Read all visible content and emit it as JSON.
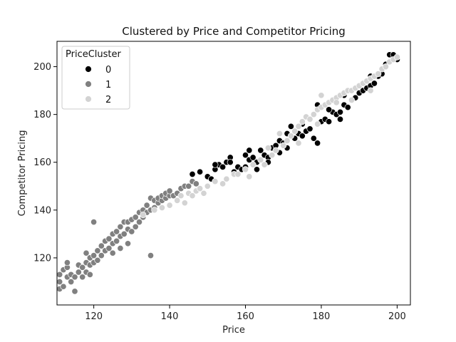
{
  "chart_data": {
    "type": "scatter",
    "title": "Clustered by Price and Competitor Pricing",
    "xlabel": "Price",
    "ylabel": "Competitor Pricing",
    "xlim": [
      110.3,
      203.5
    ],
    "ylim": [
      100.3,
      210.6
    ],
    "x_ticks": [
      120,
      140,
      160,
      180,
      200
    ],
    "y_ticks": [
      120,
      140,
      160,
      180,
      200
    ],
    "grid": false,
    "legend": {
      "title": "PriceCluster",
      "placement": "top-left",
      "entries": [
        {
          "label": "0",
          "color": "#000000"
        },
        {
          "label": "1",
          "color": "#808080"
        },
        {
          "label": "2",
          "color": "#d3d3d3"
        }
      ]
    },
    "series": [
      {
        "name": "0",
        "color": "#000000",
        "points": [
          [
            146,
            155
          ],
          [
            148,
            156
          ],
          [
            150,
            154
          ],
          [
            151,
            153
          ],
          [
            152,
            157
          ],
          [
            153,
            159
          ],
          [
            154,
            158
          ],
          [
            155,
            160
          ],
          [
            156,
            162
          ],
          [
            157,
            156
          ],
          [
            158,
            158
          ],
          [
            159,
            157
          ],
          [
            160,
            158
          ],
          [
            161,
            161
          ],
          [
            161,
            165
          ],
          [
            162,
            162
          ],
          [
            163,
            160
          ],
          [
            164,
            165
          ],
          [
            165,
            163
          ],
          [
            166,
            162
          ],
          [
            167,
            166
          ],
          [
            168,
            167
          ],
          [
            169,
            169
          ],
          [
            170,
            168
          ],
          [
            171,
            172
          ],
          [
            172,
            171
          ],
          [
            173,
            170
          ],
          [
            174,
            172
          ],
          [
            175,
            171
          ],
          [
            176,
            173
          ],
          [
            177,
            174
          ],
          [
            178,
            170
          ],
          [
            179,
            168
          ],
          [
            180,
            177
          ],
          [
            181,
            178
          ],
          [
            182,
            177
          ],
          [
            183,
            181
          ],
          [
            184,
            180
          ],
          [
            185,
            181
          ],
          [
            186,
            184
          ],
          [
            187,
            183
          ],
          [
            188,
            186
          ],
          [
            189,
            187
          ],
          [
            190,
            189
          ],
          [
            191,
            190
          ],
          [
            192,
            191
          ],
          [
            193,
            192
          ],
          [
            194,
            193
          ],
          [
            195,
            196
          ],
          [
            196,
            197
          ],
          [
            197,
            201
          ],
          [
            198,
            205
          ],
          [
            199,
            205
          ],
          [
            200,
            203
          ],
          [
            178,
            180
          ],
          [
            172,
            175
          ],
          [
            166,
            160
          ],
          [
            163,
            157
          ],
          [
            169,
            164
          ],
          [
            175,
            176
          ],
          [
            182,
            182
          ],
          [
            186,
            188
          ],
          [
            190,
            192
          ],
          [
            193,
            196
          ],
          [
            185,
            178
          ],
          [
            179,
            184
          ],
          [
            171,
            166
          ],
          [
            160,
            163
          ],
          [
            156,
            160
          ],
          [
            152,
            159
          ]
        ]
      },
      {
        "name": "1",
        "color": "#808080",
        "points": [
          [
            111,
            107
          ],
          [
            111,
            110
          ],
          [
            111,
            113
          ],
          [
            112,
            115
          ],
          [
            112,
            108
          ],
          [
            113,
            112
          ],
          [
            113,
            116
          ],
          [
            114,
            110
          ],
          [
            114,
            113
          ],
          [
            115,
            106
          ],
          [
            115,
            112
          ],
          [
            116,
            114
          ],
          [
            116,
            117
          ],
          [
            117,
            112
          ],
          [
            117,
            116
          ],
          [
            118,
            114
          ],
          [
            118,
            118
          ],
          [
            119,
            117
          ],
          [
            119,
            120
          ],
          [
            120,
            118
          ],
          [
            120,
            121
          ],
          [
            120,
            135
          ],
          [
            121,
            119
          ],
          [
            121,
            123
          ],
          [
            122,
            121
          ],
          [
            122,
            125
          ],
          [
            123,
            123
          ],
          [
            123,
            127
          ],
          [
            124,
            124
          ],
          [
            124,
            128
          ],
          [
            125,
            126
          ],
          [
            125,
            130
          ],
          [
            126,
            127
          ],
          [
            126,
            131
          ],
          [
            127,
            129
          ],
          [
            127,
            133
          ],
          [
            128,
            130
          ],
          [
            128,
            135
          ],
          [
            129,
            132
          ],
          [
            129,
            135
          ],
          [
            130,
            131
          ],
          [
            130,
            136
          ],
          [
            131,
            133
          ],
          [
            131,
            137
          ],
          [
            132,
            135
          ],
          [
            132,
            139
          ],
          [
            133,
            137
          ],
          [
            133,
            140
          ],
          [
            134,
            139
          ],
          [
            134,
            142
          ],
          [
            135,
            140
          ],
          [
            135,
            121
          ],
          [
            135,
            145
          ],
          [
            136,
            141
          ],
          [
            136,
            144
          ],
          [
            137,
            143
          ],
          [
            137,
            145
          ],
          [
            138,
            144
          ],
          [
            138,
            146
          ],
          [
            139,
            145
          ],
          [
            139,
            147
          ],
          [
            140,
            146
          ],
          [
            140,
            148
          ],
          [
            141,
            146
          ],
          [
            142,
            147
          ],
          [
            143,
            149
          ],
          [
            144,
            150
          ],
          [
            145,
            150
          ],
          [
            146,
            152
          ],
          [
            147,
            151
          ],
          [
            125,
            122
          ],
          [
            127,
            124
          ],
          [
            129,
            126
          ],
          [
            119,
            113
          ],
          [
            118,
            122
          ],
          [
            113,
            118
          ]
        ]
      },
      {
        "name": "2",
        "color": "#d3d3d3",
        "points": [
          [
            133,
            138
          ],
          [
            136,
            140
          ],
          [
            138,
            141
          ],
          [
            140,
            142
          ],
          [
            142,
            144
          ],
          [
            143,
            146
          ],
          [
            144,
            143
          ],
          [
            145,
            147
          ],
          [
            146,
            146
          ],
          [
            147,
            148
          ],
          [
            148,
            149
          ],
          [
            149,
            147
          ],
          [
            150,
            150
          ],
          [
            152,
            152
          ],
          [
            154,
            151
          ],
          [
            155,
            153
          ],
          [
            157,
            155
          ],
          [
            158,
            155
          ],
          [
            160,
            157
          ],
          [
            162,
            159
          ],
          [
            164,
            161
          ],
          [
            165,
            159
          ],
          [
            166,
            166
          ],
          [
            167,
            163
          ],
          [
            168,
            165
          ],
          [
            170,
            167
          ],
          [
            171,
            169
          ],
          [
            172,
            171
          ],
          [
            173,
            173
          ],
          [
            174,
            175
          ],
          [
            175,
            177
          ],
          [
            176,
            179
          ],
          [
            177,
            178
          ],
          [
            178,
            180
          ],
          [
            179,
            182
          ],
          [
            180,
            183
          ],
          [
            181,
            184
          ],
          [
            182,
            185
          ],
          [
            183,
            186
          ],
          [
            184,
            187
          ],
          [
            185,
            188
          ],
          [
            186,
            189
          ],
          [
            187,
            190
          ],
          [
            188,
            190
          ],
          [
            189,
            191
          ],
          [
            190,
            192
          ],
          [
            191,
            193
          ],
          [
            192,
            194
          ],
          [
            193,
            195
          ],
          [
            194,
            196
          ],
          [
            195,
            197
          ],
          [
            196,
            199
          ],
          [
            197,
            200
          ],
          [
            198,
            202
          ],
          [
            199,
            203
          ],
          [
            200,
            204
          ],
          [
            184,
            185
          ],
          [
            188,
            186
          ],
          [
            193,
            190
          ],
          [
            179,
            176
          ],
          [
            169,
            172
          ],
          [
            161,
            154
          ],
          [
            174,
            168
          ],
          [
            180,
            188
          ]
        ]
      }
    ]
  }
}
